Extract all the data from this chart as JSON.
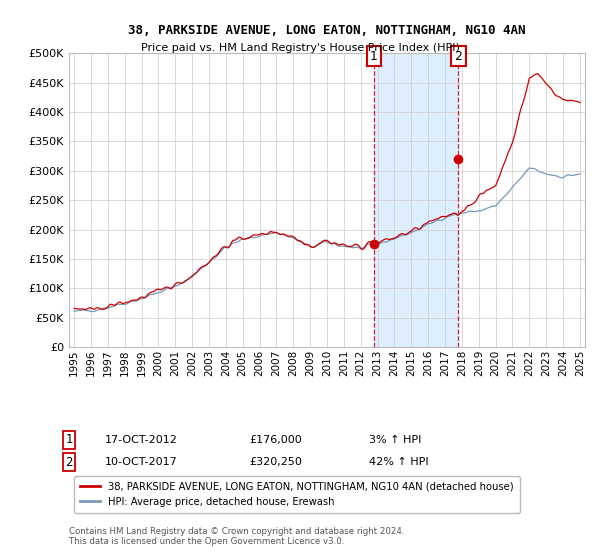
{
  "title": "38, PARKSIDE AVENUE, LONG EATON, NOTTINGHAM, NG10 4AN",
  "subtitle": "Price paid vs. HM Land Registry's House Price Index (HPI)",
  "legend_line1": "38, PARKSIDE AVENUE, LONG EATON, NOTTINGHAM, NG10 4AN (detached house)",
  "legend_line2": "HPI: Average price, detached house, Erewash",
  "annotation1_date": "17-OCT-2012",
  "annotation1_price": 176000,
  "annotation1_hpi": "3% ↑ HPI",
  "annotation2_date": "10-OCT-2017",
  "annotation2_price": 320250,
  "annotation2_hpi": "42% ↑ HPI",
  "footer": "Contains HM Land Registry data © Crown copyright and database right 2024.\nThis data is licensed under the Open Government Licence v3.0.",
  "red_color": "#cc0000",
  "blue_color": "#7799bb",
  "shade_color": "#ddeeff",
  "sale1_year": 2012.79,
  "sale1_price": 176000,
  "sale2_year": 2017.78,
  "sale2_price": 320250,
  "xmin": 1995,
  "xmax": 2025,
  "ylim_max": 500000,
  "yticks": [
    0,
    50000,
    100000,
    150000,
    200000,
    250000,
    300000,
    350000,
    400000,
    450000,
    500000
  ]
}
